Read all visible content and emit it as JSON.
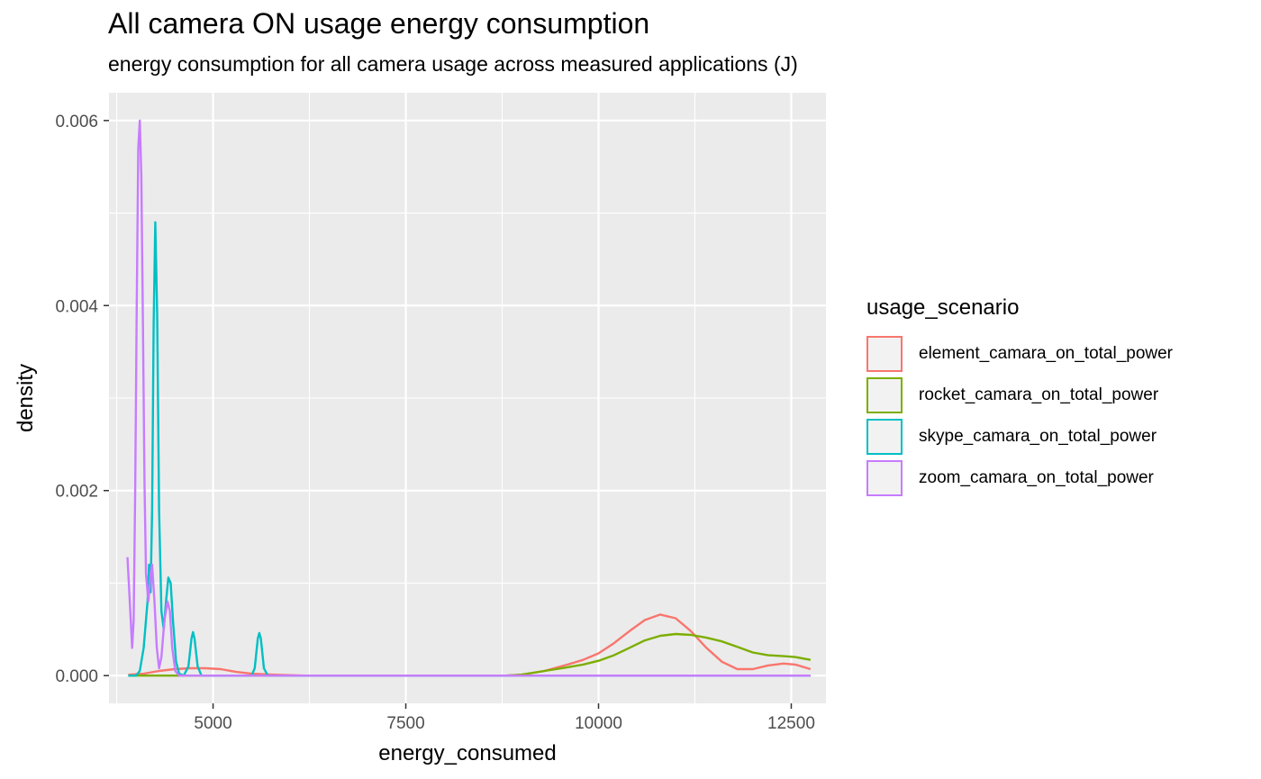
{
  "chart_data": {
    "type": "line",
    "title": "All camera ON usage energy consumption",
    "subtitle": "energy consumption for all camera usage across measured applications (J)",
    "xlabel": "energy_consumed",
    "ylabel": "density",
    "xlim": [
      3650,
      12950
    ],
    "ylim": [
      -0.0003,
      0.0063
    ],
    "x_ticks": [
      5000,
      7500,
      10000,
      12500
    ],
    "x_tick_labels": [
      "5000",
      "7500",
      "10000",
      "12500"
    ],
    "y_ticks": [
      0,
      0.002,
      0.004,
      0.006
    ],
    "y_tick_labels": [
      "0.000",
      "0.002",
      "0.004",
      "0.006"
    ],
    "grid": true,
    "legend": {
      "title": "usage_scenario",
      "placement": "right"
    },
    "series": [
      {
        "name": "element_camara_on_total_power",
        "color": "#F8766D",
        "points": [
          [
            3900,
            1e-05
          ],
          [
            4100,
            2e-05
          ],
          [
            4300,
            5e-05
          ],
          [
            4500,
            7e-05
          ],
          [
            4700,
            8e-05
          ],
          [
            4900,
            8e-05
          ],
          [
            5100,
            7e-05
          ],
          [
            5300,
            4e-05
          ],
          [
            5500,
            2e-05
          ],
          [
            5800,
            1e-05
          ],
          [
            6200,
            0
          ],
          [
            8800,
            0
          ],
          [
            9000,
            1e-05
          ],
          [
            9300,
            5e-05
          ],
          [
            9600,
            0.00012
          ],
          [
            9800,
            0.00017
          ],
          [
            10000,
            0.00024
          ],
          [
            10200,
            0.00035
          ],
          [
            10400,
            0.00048
          ],
          [
            10600,
            0.0006
          ],
          [
            10800,
            0.00066
          ],
          [
            11000,
            0.00062
          ],
          [
            11200,
            0.00048
          ],
          [
            11400,
            0.0003
          ],
          [
            11600,
            0.00015
          ],
          [
            11800,
            7e-05
          ],
          [
            12000,
            7e-05
          ],
          [
            12200,
            0.00011
          ],
          [
            12400,
            0.00013
          ],
          [
            12550,
            0.00012
          ],
          [
            12750,
            7e-05
          ]
        ]
      },
      {
        "name": "rocket_camara_on_total_power",
        "color": "#7CAE00",
        "points": [
          [
            3900,
            0
          ],
          [
            8800,
            0
          ],
          [
            9000,
            1e-05
          ],
          [
            9300,
            5e-05
          ],
          [
            9600,
            9e-05
          ],
          [
            9800,
            0.00012
          ],
          [
            10000,
            0.00016
          ],
          [
            10200,
            0.00022
          ],
          [
            10400,
            0.0003
          ],
          [
            10600,
            0.00038
          ],
          [
            10800,
            0.00043
          ],
          [
            11000,
            0.00045
          ],
          [
            11200,
            0.00044
          ],
          [
            11400,
            0.00041
          ],
          [
            11600,
            0.00037
          ],
          [
            11800,
            0.00031
          ],
          [
            12000,
            0.00025
          ],
          [
            12200,
            0.00022
          ],
          [
            12400,
            0.00021
          ],
          [
            12550,
            0.0002
          ],
          [
            12750,
            0.00017
          ]
        ]
      },
      {
        "name": "skype_camara_on_total_power",
        "color": "#00BFC4",
        "points": [
          [
            3900,
            0
          ],
          [
            4000,
            0
          ],
          [
            4050,
            5e-05
          ],
          [
            4100,
            0.0003
          ],
          [
            4150,
            0.0008
          ],
          [
            4170,
            0.0012
          ],
          [
            4190,
            0.0009
          ],
          [
            4210,
            0.0018
          ],
          [
            4230,
            0.0038
          ],
          [
            4250,
            0.0049
          ],
          [
            4275,
            0.0039
          ],
          [
            4300,
            0.0018
          ],
          [
            4330,
            0.0007
          ],
          [
            4360,
            0.0005
          ],
          [
            4390,
            0.0008
          ],
          [
            4420,
            0.00106
          ],
          [
            4450,
            0.001
          ],
          [
            4480,
            0.0006
          ],
          [
            4520,
            0.00015
          ],
          [
            4560,
            2e-05
          ],
          [
            4620,
            0
          ],
          [
            4680,
            0.0001
          ],
          [
            4720,
            0.0004
          ],
          [
            4740,
            0.00047
          ],
          [
            4760,
            0.0004
          ],
          [
            4800,
            0.0001
          ],
          [
            4850,
            0
          ],
          [
            5500,
            0
          ],
          [
            5540,
            8e-05
          ],
          [
            5580,
            0.0004
          ],
          [
            5600,
            0.00046
          ],
          [
            5620,
            0.0004
          ],
          [
            5660,
            8e-05
          ],
          [
            5710,
            0
          ],
          [
            12750,
            0
          ]
        ]
      },
      {
        "name": "zoom_camara_on_total_power",
        "color": "#C77CFF",
        "points": [
          [
            3890,
            0.00128
          ],
          [
            3920,
            0.0008
          ],
          [
            3950,
            0.0003
          ],
          [
            3970,
            0.0006
          ],
          [
            3990,
            0.002
          ],
          [
            4010,
            0.004
          ],
          [
            4030,
            0.0057
          ],
          [
            4050,
            0.006
          ],
          [
            4070,
            0.0054
          ],
          [
            4090,
            0.0038
          ],
          [
            4110,
            0.0021
          ],
          [
            4130,
            0.0011
          ],
          [
            4160,
            0.0008
          ],
          [
            4190,
            0.0011
          ],
          [
            4210,
            0.0012
          ],
          [
            4240,
            0.0008
          ],
          [
            4270,
            0.0003
          ],
          [
            4300,
            8e-05
          ],
          [
            4330,
            0.0002
          ],
          [
            4370,
            0.0006
          ],
          [
            4410,
            0.0008
          ],
          [
            4440,
            0.0007
          ],
          [
            4470,
            0.0003
          ],
          [
            4510,
            5e-05
          ],
          [
            4560,
            0
          ],
          [
            12750,
            0
          ]
        ]
      }
    ]
  }
}
